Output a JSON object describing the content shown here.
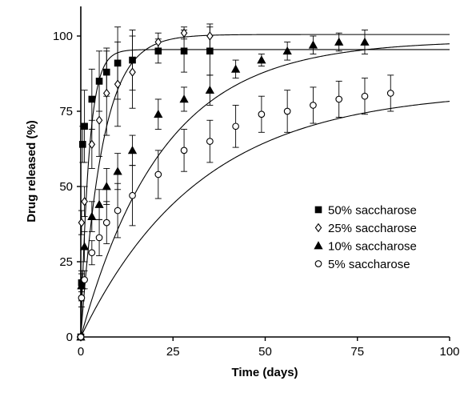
{
  "chart_data": {
    "type": "scatter",
    "xlabel": "Time (days)",
    "ylabel": "Drug released (%)",
    "xlim": [
      0,
      100
    ],
    "ylim": [
      0,
      110
    ],
    "xticks": [
      0,
      25,
      50,
      75,
      100
    ],
    "yticks": [
      0,
      25,
      50,
      75,
      100
    ],
    "grid": false,
    "legend_position": "center-right",
    "series": [
      {
        "name": "50% saccharose",
        "marker": "square-filled",
        "points": [
          {
            "x": 0,
            "y": 0,
            "err": 0
          },
          {
            "x": 0.2,
            "y": 18,
            "err": 3
          },
          {
            "x": 0.5,
            "y": 64,
            "err": 6
          },
          {
            "x": 1,
            "y": 70,
            "err": 12
          },
          {
            "x": 3,
            "y": 79,
            "err": 10
          },
          {
            "x": 5,
            "y": 85,
            "err": 10
          },
          {
            "x": 7,
            "y": 88,
            "err": 8
          },
          {
            "x": 10,
            "y": 91,
            "err": 12
          },
          {
            "x": 14,
            "y": 92,
            "err": 10
          },
          {
            "x": 21,
            "y": 95,
            "err": 4
          },
          {
            "x": 28,
            "y": 95,
            "err": 7
          },
          {
            "x": 35,
            "y": 95,
            "err": 8
          }
        ],
        "fit": {
          "plateau": 95.5,
          "k": 0.45
        }
      },
      {
        "name": "25% saccharose",
        "marker": "diamond-open",
        "points": [
          {
            "x": 0,
            "y": 0,
            "err": 0
          },
          {
            "x": 0.2,
            "y": 38,
            "err": 4
          },
          {
            "x": 1,
            "y": 45,
            "err": 5
          },
          {
            "x": 3,
            "y": 64,
            "err": 8
          },
          {
            "x": 5,
            "y": 72,
            "err": 12
          },
          {
            "x": 7,
            "y": 81,
            "err": 14
          },
          {
            "x": 10,
            "y": 84,
            "err": 14
          },
          {
            "x": 14,
            "y": 88,
            "err": 12
          },
          {
            "x": 21,
            "y": 98,
            "err": 3
          },
          {
            "x": 28,
            "y": 101,
            "err": 2
          },
          {
            "x": 35,
            "y": 100,
            "err": 4
          }
        ],
        "fit": {
          "plateau": 100.5,
          "k": 0.17
        }
      },
      {
        "name": "10% saccharose",
        "marker": "triangle-filled",
        "points": [
          {
            "x": 0,
            "y": 0,
            "err": 0
          },
          {
            "x": 0.2,
            "y": 17,
            "err": 5
          },
          {
            "x": 1,
            "y": 30,
            "err": 5
          },
          {
            "x": 3,
            "y": 40,
            "err": 5
          },
          {
            "x": 5,
            "y": 44,
            "err": 5
          },
          {
            "x": 7,
            "y": 50,
            "err": 6
          },
          {
            "x": 10,
            "y": 55,
            "err": 6
          },
          {
            "x": 14,
            "y": 62,
            "err": 5
          },
          {
            "x": 21,
            "y": 74,
            "err": 5
          },
          {
            "x": 28,
            "y": 79,
            "err": 4
          },
          {
            "x": 35,
            "y": 82,
            "err": 5
          },
          {
            "x": 42,
            "y": 89,
            "err": 3
          },
          {
            "x": 49,
            "y": 92,
            "err": 2
          },
          {
            "x": 56,
            "y": 95,
            "err": 3
          },
          {
            "x": 63,
            "y": 97,
            "err": 3
          },
          {
            "x": 70,
            "y": 98,
            "err": 3
          },
          {
            "x": 77,
            "y": 98,
            "err": 4
          }
        ],
        "fit": {
          "plateau": 98.5,
          "k": 0.045
        }
      },
      {
        "name": "5% saccharose",
        "marker": "circle-open",
        "points": [
          {
            "x": 0,
            "y": 0,
            "err": 0
          },
          {
            "x": 0.2,
            "y": 13,
            "err": 3
          },
          {
            "x": 1,
            "y": 19,
            "err": 3
          },
          {
            "x": 3,
            "y": 28,
            "err": 4
          },
          {
            "x": 5,
            "y": 33,
            "err": 6
          },
          {
            "x": 7,
            "y": 38,
            "err": 7
          },
          {
            "x": 10,
            "y": 42,
            "err": 9
          },
          {
            "x": 14,
            "y": 47,
            "err": 10
          },
          {
            "x": 21,
            "y": 54,
            "err": 8
          },
          {
            "x": 28,
            "y": 62,
            "err": 7
          },
          {
            "x": 35,
            "y": 65,
            "err": 7
          },
          {
            "x": 42,
            "y": 70,
            "err": 7
          },
          {
            "x": 49,
            "y": 74,
            "err": 6
          },
          {
            "x": 56,
            "y": 75,
            "err": 7
          },
          {
            "x": 63,
            "y": 77,
            "err": 6
          },
          {
            "x": 70,
            "y": 79,
            "err": 6
          },
          {
            "x": 77,
            "y": 80,
            "err": 6
          },
          {
            "x": 84,
            "y": 81,
            "err": 6
          }
        ],
        "fit": {
          "plateau": 82,
          "k": 0.031
        }
      }
    ]
  }
}
